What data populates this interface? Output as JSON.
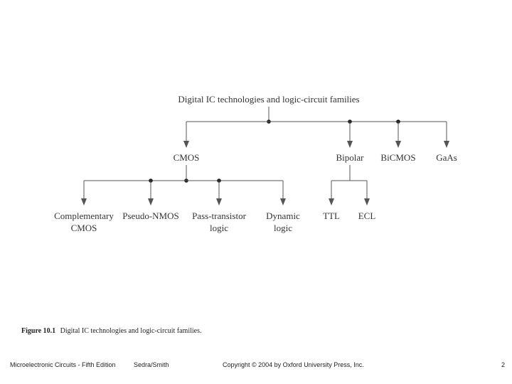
{
  "diagram": {
    "root": "Digital IC technologies and logic-circuit families",
    "level1": [
      "CMOS",
      "Bipolar",
      "BiCMOS",
      "GaAs"
    ],
    "cmos_children": [
      [
        "Complementary",
        "CMOS"
      ],
      [
        "Pseudo-NMOS"
      ],
      [
        "Pass-transistor",
        "logic"
      ],
      [
        "Dynamic",
        "logic"
      ]
    ],
    "bipolar_children": [
      "TTL",
      "ECL"
    ]
  },
  "caption": {
    "figure_number": "Figure 10.1",
    "text": "Digital IC technologies and logic-circuit families."
  },
  "footer": {
    "book": "Microelectronic Circuits - Fifth Edition",
    "authors": "Sedra/Smith",
    "copyright": "Copyright © 2004 by Oxford University Press, Inc.",
    "page": "2"
  }
}
